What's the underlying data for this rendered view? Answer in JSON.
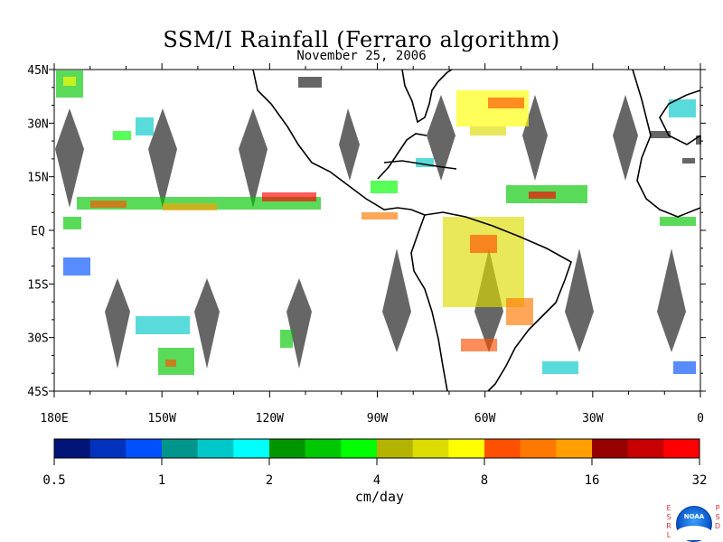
{
  "title": "SSM/I Rainfall (Ferraro algorithm)",
  "subtitle": "November 25, 2006",
  "map": {
    "lon_range": [
      -180,
      0
    ],
    "lat_range": [
      -45,
      45
    ],
    "lat_ticks": [
      {
        "value": 45,
        "label": "45N"
      },
      {
        "value": 30,
        "label": "30N"
      },
      {
        "value": 15,
        "label": "15N"
      },
      {
        "value": 0,
        "label": "EQ"
      },
      {
        "value": -15,
        "label": "15S"
      },
      {
        "value": -30,
        "label": "30S"
      },
      {
        "value": -45,
        "label": "45S"
      }
    ],
    "lon_ticks": [
      {
        "value": -180,
        "label": "180E"
      },
      {
        "value": -150,
        "label": "150W"
      },
      {
        "value": -120,
        "label": "120W"
      },
      {
        "value": -90,
        "label": "90W"
      },
      {
        "value": -60,
        "label": "60W"
      },
      {
        "value": -30,
        "label": "30W"
      },
      {
        "value": 0,
        "label": "0"
      }
    ],
    "no_data_color": "#666666",
    "coast_color": "#000000"
  },
  "colorbar": {
    "title": "cm/day",
    "colors": [
      "#001478",
      "#0032be",
      "#0050ff",
      "#00968c",
      "#00c8c8",
      "#00ffff",
      "#009600",
      "#00c800",
      "#00ff00",
      "#b4b400",
      "#dcdc00",
      "#ffff00",
      "#ff5000",
      "#ff7800",
      "#ffa000",
      "#960000",
      "#c80000",
      "#ff0000"
    ],
    "labels": [
      "0.5",
      "1",
      "2",
      "4",
      "8",
      "16",
      "32"
    ]
  },
  "logo": {
    "left_letters": [
      "E",
      "S",
      "R",
      "L"
    ],
    "right_letters": [
      "P",
      "S",
      "D"
    ],
    "name": "NOAA"
  }
}
